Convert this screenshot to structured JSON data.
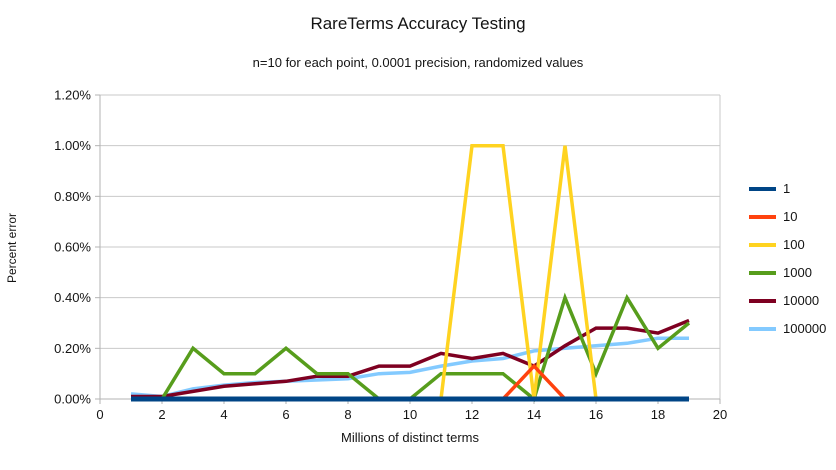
{
  "title": "RareTerms Accuracy Testing",
  "subtitle": "n=10 for each point, 0.0001 precision, randomized values",
  "chart_data": {
    "type": "line",
    "title": "RareTerms Accuracy Testing",
    "subtitle": "n=10 for each point, 0.0001 precision, randomized values",
    "xlabel": "Millions of distinct terms",
    "ylabel": "Percent error",
    "xlim": [
      0,
      20
    ],
    "ylim": [
      0,
      1.2
    ],
    "x_ticks": [
      "0",
      "2",
      "4",
      "6",
      "8",
      "10",
      "12",
      "14",
      "16",
      "18",
      "20"
    ],
    "x_tick_values": [
      0,
      2,
      4,
      6,
      8,
      10,
      12,
      14,
      16,
      18,
      20
    ],
    "y_ticks": [
      "0.00%",
      "0.20%",
      "0.40%",
      "0.60%",
      "0.80%",
      "1.00%",
      "1.20%"
    ],
    "y_tick_values": [
      0,
      0.2,
      0.4,
      0.6,
      0.8,
      1.0,
      1.2
    ],
    "grid": "horizontal-major-only",
    "legend_position": "right",
    "x": [
      1,
      2,
      3,
      4,
      5,
      6,
      7,
      8,
      9,
      10,
      11,
      12,
      13,
      14,
      15,
      16,
      17,
      18,
      19
    ],
    "series": [
      {
        "name": "1",
        "color": "#004586",
        "values": [
          0,
          0,
          0,
          0,
          0,
          0,
          0,
          0,
          0,
          0,
          0,
          0,
          0,
          0,
          0,
          0,
          0,
          0,
          0
        ]
      },
      {
        "name": "10",
        "color": "#FF420E",
        "values": [
          0,
          0,
          0,
          0,
          0,
          0,
          0,
          0,
          0,
          0,
          0,
          0,
          0,
          0.13,
          0,
          0,
          0,
          0,
          0
        ]
      },
      {
        "name": "100",
        "color": "#FFD320",
        "values": [
          0,
          0,
          0,
          0,
          0,
          0,
          0,
          0,
          0,
          0,
          0,
          1.0,
          1.0,
          0,
          1.0,
          0,
          0,
          0,
          0
        ]
      },
      {
        "name": "1000",
        "color": "#579D1C",
        "values": [
          0,
          0,
          0.2,
          0.1,
          0.1,
          0.2,
          0.1,
          0.1,
          0,
          0,
          0.1,
          0.1,
          0.1,
          0,
          0.4,
          0.1,
          0.4,
          0.2,
          0.3
        ]
      },
      {
        "name": "10000",
        "color": "#7E0021",
        "values": [
          0.01,
          0.01,
          0.03,
          0.05,
          0.06,
          0.07,
          0.09,
          0.09,
          0.13,
          0.13,
          0.18,
          0.16,
          0.18,
          0.13,
          0.21,
          0.28,
          0.28,
          0.26,
          0.31
        ]
      },
      {
        "name": "100000",
        "color": "#83CAFF",
        "values": [
          0.02,
          0.01,
          0.04,
          0.055,
          0.065,
          0.07,
          0.075,
          0.08,
          0.1,
          0.105,
          0.13,
          0.15,
          0.16,
          0.19,
          0.2,
          0.21,
          0.22,
          0.24,
          0.24
        ]
      }
    ],
    "draw_order": [
      "100000",
      "10000",
      "1000",
      "100",
      "10",
      "1"
    ],
    "colors": {
      "gridline": "#c9c9c9",
      "axis": "#b3b3b3",
      "text": "#141414",
      "background": "#ffffff"
    }
  }
}
